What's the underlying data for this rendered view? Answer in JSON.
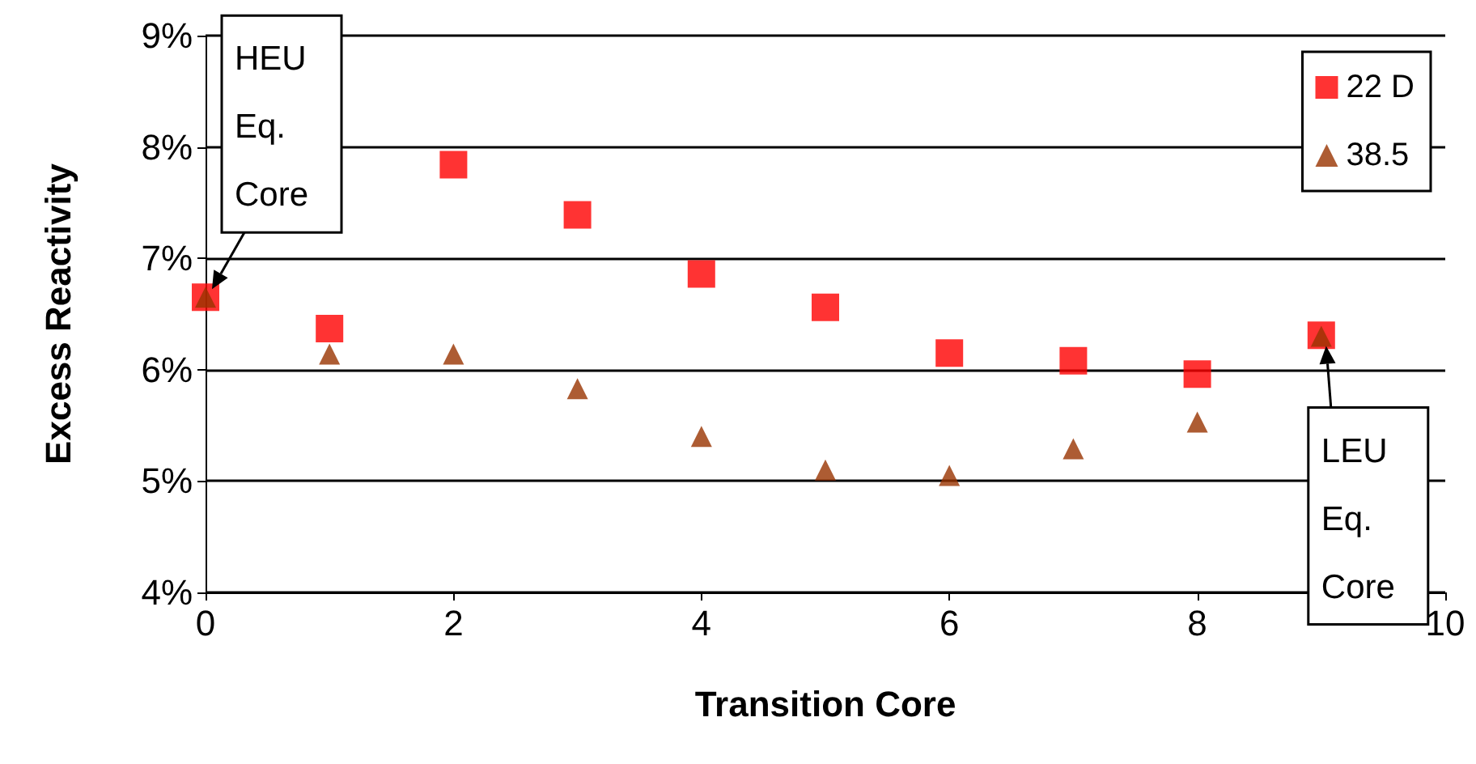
{
  "chart_data": {
    "type": "scatter",
    "xlabel": "Transition Core",
    "ylabel": "Excess Reactivity",
    "x": [
      0,
      1,
      2,
      3,
      4,
      5,
      6,
      7,
      8,
      9
    ],
    "series": [
      {
        "name": "22 D",
        "color": "#ff0000",
        "marker": "square",
        "values": [
          6.65,
          6.37,
          7.84,
          7.39,
          6.86,
          6.56,
          6.15,
          6.08,
          5.96,
          6.31
        ]
      },
      {
        "name": "38.5",
        "color": "#993300",
        "marker": "triangle",
        "values": [
          6.65,
          6.14,
          6.14,
          5.83,
          5.4,
          5.1,
          5.05,
          5.29,
          5.53,
          6.3
        ]
      }
    ],
    "xlim": [
      0,
      10
    ],
    "xticks": [
      0,
      2,
      4,
      6,
      8,
      10
    ],
    "ylim": [
      4,
      9
    ],
    "yticks": [
      {
        "value": 4,
        "label": "4%"
      },
      {
        "value": 5,
        "label": "5%"
      },
      {
        "value": 6,
        "label": "6%"
      },
      {
        "value": 7,
        "label": "7%"
      },
      {
        "value": 8,
        "label": "8%"
      },
      {
        "value": 9,
        "label": "9%"
      }
    ],
    "grid": "y",
    "legend": "top right",
    "annotations": [
      {
        "text": "HEU\nEq.\nCore",
        "x": 0,
        "y": 6.65
      },
      {
        "text": "LEU\nEq.\nCore",
        "x": 9,
        "y": 6.3
      }
    ]
  }
}
